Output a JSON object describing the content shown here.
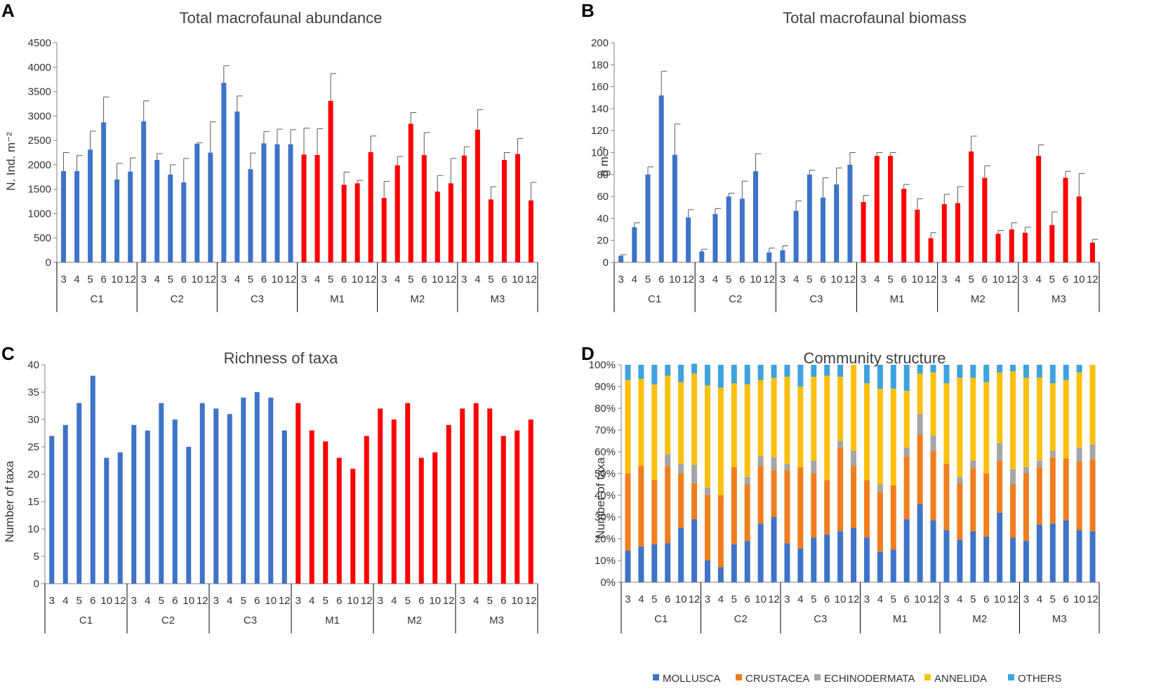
{
  "colors": {
    "control": "#3e73c8",
    "modified": "#ff0000",
    "axis": "#7f7f7f",
    "errorbar": "#595959",
    "mollusca": "#3e73c8",
    "crustacea": "#f07e1f",
    "echinodermata": "#a5a5a5",
    "annelida": "#fec00f",
    "others": "#3fa2dc"
  },
  "panels": {
    "A": {
      "letter": "A"
    },
    "B": {
      "letter": "B"
    },
    "C": {
      "letter": "C"
    },
    "D": {
      "letter": "D"
    }
  },
  "chart_data": [
    {
      "id": "A",
      "type": "bar",
      "title": "Total macrofaunal abundance",
      "ylabel": "N. Ind. m⁻²",
      "ylim": [
        0,
        4500
      ],
      "yticks": [
        0,
        500,
        1000,
        1500,
        2000,
        2500,
        3000,
        3500,
        4000,
        4500
      ],
      "ytick_labels": [
        "0",
        "500",
        "1000",
        "1500",
        "2000",
        "2500",
        "3000",
        "3500",
        "4000",
        "4500"
      ],
      "months": [
        "3",
        "4",
        "5",
        "6",
        "10",
        "12"
      ],
      "groups": [
        "C1",
        "C2",
        "C3",
        "M1",
        "M2",
        "M3"
      ],
      "group_color": [
        "control",
        "control",
        "control",
        "modified",
        "modified",
        "modified"
      ],
      "values": [
        [
          1870,
          1870,
          2310,
          2870,
          1700,
          1860
        ],
        [
          2890,
          2100,
          1800,
          1640,
          2430,
          2250
        ],
        [
          3680,
          3090,
          1910,
          2440,
          2420,
          2420
        ],
        [
          2210,
          2200,
          3310,
          1590,
          1620,
          2260
        ],
        [
          1320,
          1990,
          2840,
          2200,
          1450,
          1620
        ],
        [
          2190,
          2720,
          1290,
          2100,
          2220,
          1270
        ]
      ],
      "errors": [
        [
          380,
          320,
          380,
          520,
          330,
          280
        ],
        [
          420,
          130,
          200,
          490,
          20,
          630
        ],
        [
          350,
          320,
          330,
          240,
          310,
          300
        ],
        [
          540,
          540,
          560,
          260,
          60,
          330
        ],
        [
          340,
          180,
          230,
          460,
          330,
          510
        ],
        [
          180,
          410,
          260,
          150,
          320,
          370
        ]
      ]
    },
    {
      "id": "B",
      "type": "bar",
      "title": "Total macrofaunal biomass",
      "ylabel": "g m⁻²",
      "ylim": [
        0,
        200
      ],
      "yticks": [
        0,
        20,
        40,
        60,
        80,
        100,
        120,
        140,
        160,
        180,
        200
      ],
      "ytick_labels": [
        "0",
        "20",
        "40",
        "60",
        "80",
        "100",
        "120",
        "140",
        "160",
        "180",
        "200"
      ],
      "months": [
        "3",
        "4",
        "5",
        "6",
        "10",
        "12"
      ],
      "groups": [
        "C1",
        "C2",
        "C3",
        "M1",
        "M2",
        "M3"
      ],
      "group_color": [
        "control",
        "control",
        "control",
        "modified",
        "modified",
        "modified"
      ],
      "values": [
        [
          6,
          32,
          80,
          152,
          98,
          41
        ],
        [
          10,
          44,
          60,
          58,
          83,
          9
        ],
        [
          11,
          47,
          80,
          59,
          71,
          89
        ],
        [
          55,
          97,
          97,
          67,
          48,
          22
        ],
        [
          53,
          54,
          101,
          77,
          26,
          30
        ],
        [
          27,
          97,
          34,
          77,
          60,
          18
        ]
      ],
      "errors": [
        [
          1,
          4,
          7,
          22,
          28,
          7
        ],
        [
          2,
          5,
          3,
          16,
          16,
          4
        ],
        [
          4,
          9,
          4,
          18,
          15,
          11
        ],
        [
          6,
          3,
          3,
          4,
          10,
          5
        ],
        [
          9,
          15,
          14,
          11,
          3,
          6
        ],
        [
          5,
          10,
          12,
          6,
          21,
          3
        ]
      ]
    },
    {
      "id": "C",
      "type": "bar",
      "title": "Richness of taxa",
      "ylabel": "Number of taxa",
      "ylim": [
        0,
        40
      ],
      "yticks": [
        0,
        5,
        10,
        15,
        20,
        25,
        30,
        35,
        40
      ],
      "ytick_labels": [
        "0",
        "5",
        "10",
        "15",
        "20",
        "25",
        "30",
        "35",
        "40"
      ],
      "months": [
        "3",
        "4",
        "5",
        "6",
        "10",
        "12"
      ],
      "groups": [
        "C1",
        "C2",
        "C3",
        "M1",
        "M2",
        "M3"
      ],
      "group_color": [
        "control",
        "control",
        "control",
        "modified",
        "modified",
        "modified"
      ],
      "values": [
        [
          27,
          29,
          33,
          38,
          23,
          24
        ],
        [
          29,
          28,
          33,
          30,
          25,
          33
        ],
        [
          32,
          31,
          34,
          35,
          34,
          28
        ],
        [
          33,
          28,
          26,
          23,
          21,
          27
        ],
        [
          32,
          30,
          33,
          23,
          24,
          29
        ],
        [
          32,
          33,
          32,
          27,
          28,
          30
        ]
      ]
    },
    {
      "id": "D",
      "type": "bar",
      "stacked": true,
      "title": "Community structure",
      "ylabel": "Number of taxa",
      "ylim": [
        0,
        100
      ],
      "yticks": [
        0,
        10,
        20,
        30,
        40,
        50,
        60,
        70,
        80,
        90,
        100
      ],
      "ytick_labels": [
        "0%",
        "10%",
        "20%",
        "30%",
        "40%",
        "50%",
        "60%",
        "70%",
        "80%",
        "90%",
        "100%"
      ],
      "months": [
        "3",
        "4",
        "5",
        "6",
        "10",
        "12"
      ],
      "groups": [
        "C1",
        "C2",
        "C3",
        "M1",
        "M2",
        "M3"
      ],
      "legend": [
        "MOLLUSCA",
        "CRUSTACEA",
        "ECHINODERMATA",
        "ANNELIDA",
        "OTHERS"
      ],
      "legend_keys": [
        "mollusca",
        "crustacea",
        "echinodermata",
        "annelida",
        "others"
      ],
      "legend_position": "bottom",
      "series": [
        {
          "name": "MOLLUSCA",
          "values": [
            [
              14.5,
              16.5,
              17.5,
              18,
              25,
              29
            ],
            [
              10,
              7,
              17.5,
              19,
              27,
              30
            ],
            [
              18,
              15.5,
              20.5,
              22,
              23.5,
              25
            ],
            [
              20.5,
              14,
              15,
              29,
              36,
              28.5
            ],
            [
              24,
              19.5,
              23.5,
              21,
              32,
              20.5
            ],
            [
              19,
              26.5,
              27,
              28.5,
              24,
              23.5
            ]
          ]
        },
        {
          "name": "CRUSTACEA",
          "values": [
            [
              35.5,
              37,
              29.5,
              35.5,
              25,
              16.5
            ],
            [
              30,
              33,
              35.5,
              26,
              26.5,
              21.5
            ],
            [
              33.5,
              37.5,
              29.5,
              25,
              38.5,
              28.5
            ],
            [
              26.5,
              27.5,
              29.5,
              29,
              32,
              32
            ],
            [
              30.5,
              26,
              29,
              29,
              24,
              24.5
            ],
            [
              31,
              26.5,
              30.5,
              28.5,
              31.5,
              33
            ]
          ]
        },
        {
          "name": "ECHINODERMATA",
          "values": [
            [
              0,
              0,
              0,
              5.5,
              4.5,
              8.5
            ],
            [
              3.5,
              0,
              0,
              3.5,
              4.5,
              6
            ],
            [
              3,
              0,
              6,
              0,
              3,
              7
            ],
            [
              0,
              3.5,
              0,
              4,
              9.5,
              7
            ],
            [
              0,
              3,
              3.5,
              0,
              8,
              7
            ],
            [
              3,
              3,
              3,
              0,
              6.5,
              7
            ]
          ]
        },
        {
          "name": "ANNELIDA",
          "values": [
            [
              43,
              40,
              44,
              36,
              37.5,
              42
            ],
            [
              47,
              49.5,
              38.5,
              42.5,
              35,
              36.5
            ],
            [
              40,
              37,
              38.5,
              48,
              29.5,
              39.5
            ],
            [
              44.5,
              44,
              44.5,
              26,
              18.5,
              29
            ],
            [
              37,
              45.5,
              38,
              42,
              32.5,
              45
            ],
            [
              41,
              38,
              31,
              36,
              34.5,
              36.5
            ]
          ]
        },
        {
          "name": "OTHERS",
          "values": [
            [
              7,
              6.5,
              9,
              5,
              8,
              4.5
            ],
            [
              9.5,
              10.5,
              8.5,
              9,
              7,
              6
            ],
            [
              5.5,
              10,
              5.5,
              5,
              5.5,
              0
            ],
            [
              8.5,
              11,
              11,
              12,
              4,
              3.5
            ],
            [
              8.5,
              6,
              6,
              8,
              3.5,
              3
            ],
            [
              6,
              6,
              8.5,
              7,
              3.5,
              0
            ]
          ]
        }
      ]
    }
  ]
}
